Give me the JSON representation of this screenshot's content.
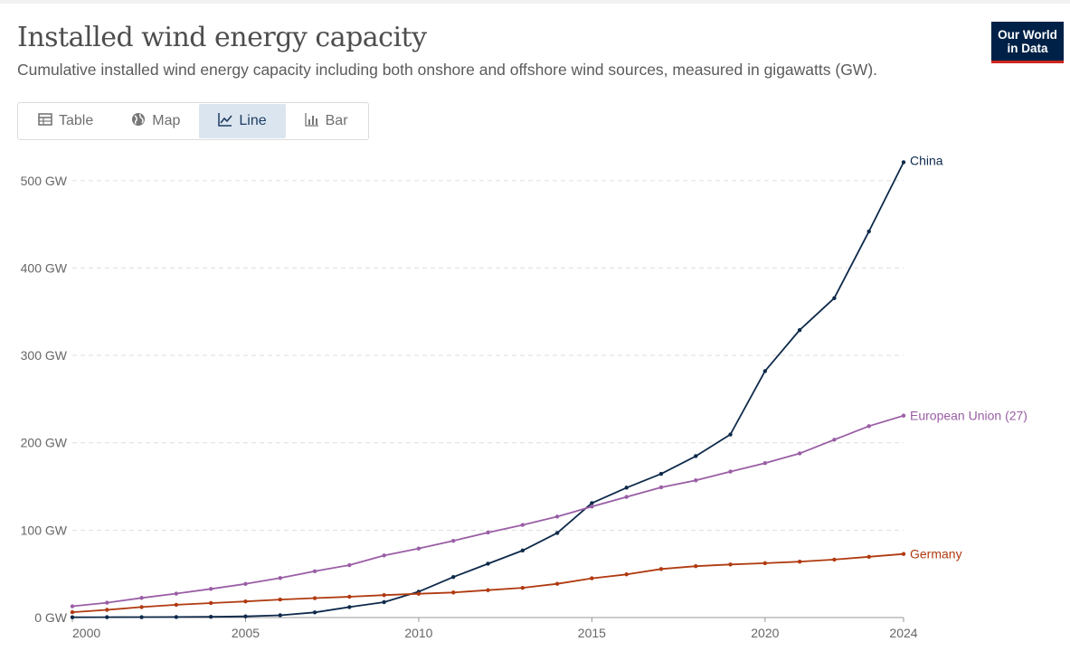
{
  "header": {
    "title": "Installed wind energy capacity",
    "subtitle": "Cumulative installed wind energy capacity including both onshore and offshore wind sources, measured in gigawatts (GW).",
    "logo_line1": "Our World",
    "logo_line2": "in Data"
  },
  "tabs": [
    {
      "label": "Table",
      "icon": "table-icon",
      "active": false
    },
    {
      "label": "Map",
      "icon": "globe-icon",
      "active": false
    },
    {
      "label": "Line",
      "icon": "line-chart-icon",
      "active": true
    },
    {
      "label": "Bar",
      "icon": "bar-chart-icon",
      "active": false
    }
  ],
  "colors": {
    "china": "#0e2a4b",
    "eu": "#9a5ea5",
    "germany": "#b03a10",
    "grid": "#dddddd"
  },
  "chart_data": {
    "type": "line",
    "title": "",
    "xlabel": "",
    "ylabel": "",
    "xlim": [
      2000,
      2024
    ],
    "ylim": [
      0,
      520
    ],
    "y_ticks": [
      0,
      100,
      200,
      300,
      400,
      500
    ],
    "y_tick_labels": [
      "0 GW",
      "100 GW",
      "200 GW",
      "300 GW",
      "400 GW",
      "500 GW"
    ],
    "x_ticks": [
      2000,
      2005,
      2010,
      2015,
      2020,
      2024
    ],
    "x_tick_labels": [
      "2000",
      "2005",
      "2010",
      "2015",
      "2020",
      "2024"
    ],
    "grid": true,
    "legend": "end-of-line labels",
    "x": [
      2000,
      2001,
      2002,
      2003,
      2004,
      2005,
      2006,
      2007,
      2008,
      2009,
      2010,
      2011,
      2012,
      2013,
      2014,
      2015,
      2016,
      2017,
      2018,
      2019,
      2020,
      2021,
      2022,
      2023,
      2024
    ],
    "series": [
      {
        "name": "China",
        "color": "#0e2a4b",
        "values": [
          0.3,
          0.4,
          0.5,
          0.6,
          0.8,
          1.3,
          2.6,
          5.9,
          12.0,
          17.6,
          29.6,
          46.4,
          61.6,
          76.7,
          96.8,
          131.0,
          148.6,
          164.4,
          184.7,
          209.5,
          282.0,
          329.0,
          365.5,
          441.9,
          521.0
        ]
      },
      {
        "name": "European Union (27)",
        "color": "#9a5ea5",
        "values": [
          12.9,
          17.0,
          22.5,
          27.4,
          32.8,
          38.5,
          45.2,
          53.0,
          60.0,
          71.0,
          79.0,
          87.8,
          97.3,
          106.0,
          115.5,
          127.0,
          138.0,
          149.0,
          157.0,
          167.0,
          176.7,
          187.8,
          203.5,
          219.0,
          231.0
        ]
      },
      {
        "name": "Germany",
        "color": "#b03a10",
        "values": [
          6.1,
          8.8,
          12.0,
          14.6,
          16.6,
          18.4,
          20.6,
          22.2,
          23.8,
          25.7,
          27.2,
          28.7,
          31.3,
          34.0,
          38.6,
          44.9,
          49.4,
          55.6,
          58.8,
          60.7,
          62.2,
          63.9,
          66.3,
          69.5,
          72.7
        ]
      }
    ]
  }
}
